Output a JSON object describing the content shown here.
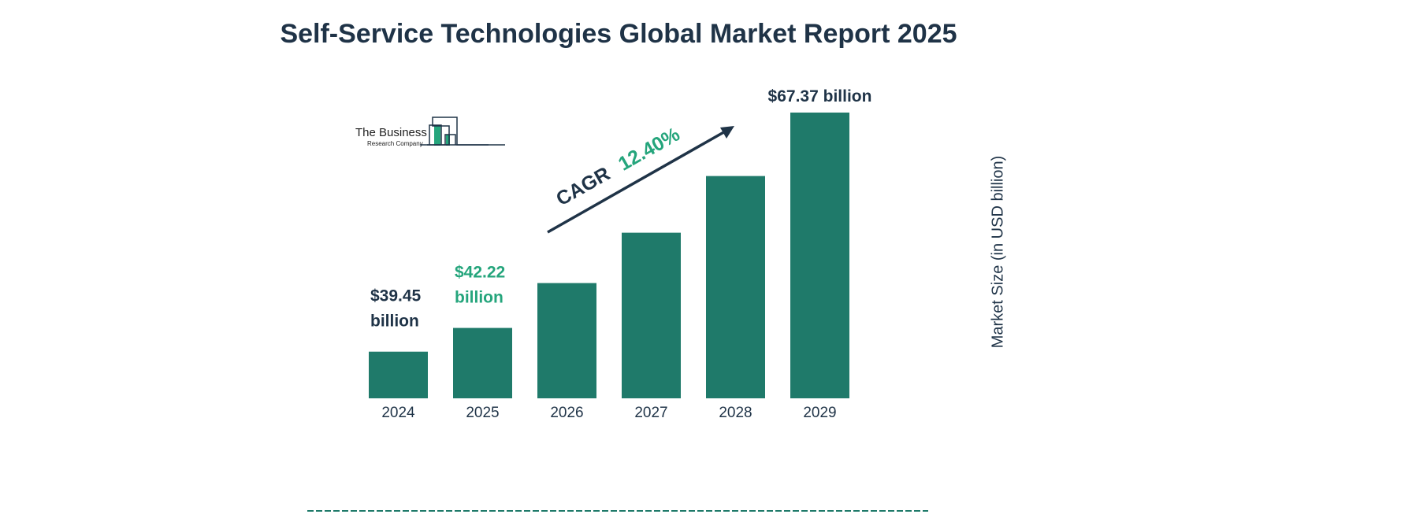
{
  "chart_data": {
    "type": "bar",
    "title": "Self-Service Technologies Global Market Report 2025",
    "ylabel": "Market Size (in USD billion)",
    "categories": [
      "2024",
      "2025",
      "2026",
      "2027",
      "2028",
      "2029"
    ],
    "values": [
      39.45,
      42.22,
      47.46,
      53.34,
      59.96,
      67.37
    ],
    "data_labels": [
      {
        "index": 0,
        "lines": [
          "$39.45",
          "billion"
        ],
        "color": "#1f3347"
      },
      {
        "index": 1,
        "lines": [
          "$42.22",
          "billion"
        ],
        "color": "#25a57c"
      },
      {
        "index": 5,
        "lines": [
          "$67.37 billion"
        ],
        "color": "#1f3347"
      }
    ],
    "annotation": {
      "label": "CAGR",
      "value": "12.40%"
    },
    "ylim": [
      34,
      68
    ],
    "grid": false,
    "bar_color": "#1f7a6a",
    "logo": {
      "line1": "The Business",
      "line2": "Research Company"
    }
  }
}
